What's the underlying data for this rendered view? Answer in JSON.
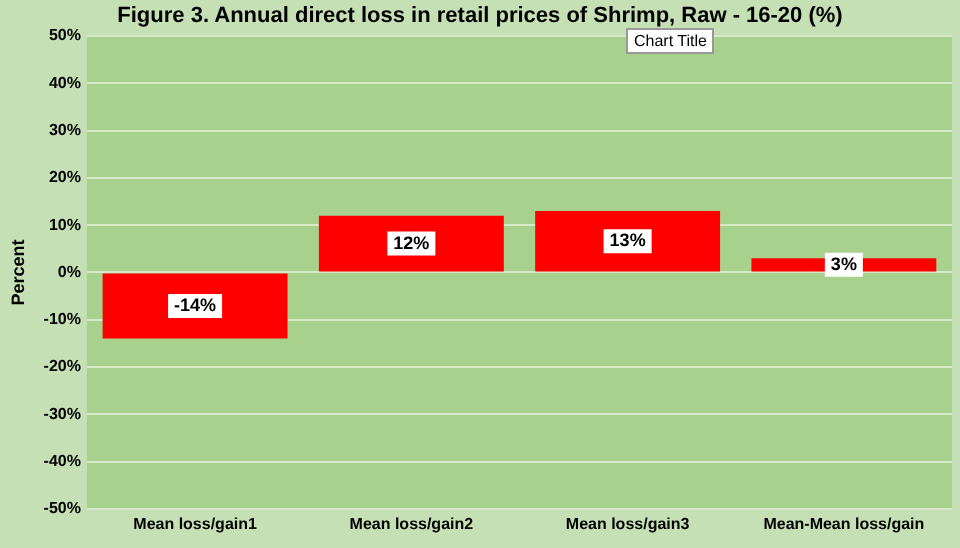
{
  "chart_data": {
    "type": "bar",
    "title": "Figure 3. Annual direct loss in retail prices of Shrimp, Raw - 16-20 (%)",
    "ylabel": "Percent",
    "categories": [
      "Mean loss/gain1",
      "Mean loss/gain2",
      "Mean loss/gain3",
      "Mean-Mean loss/gain"
    ],
    "values": [
      -14,
      12,
      13,
      3
    ],
    "color": "#ff0000",
    "value_labels": [
      "-14%",
      "12%",
      "13%",
      "3%"
    ],
    "ylim": [
      -50,
      50
    ],
    "yticks": [
      {
        "value": -50,
        "label": "-50%"
      },
      {
        "value": -40,
        "label": "-40%"
      },
      {
        "value": -30,
        "label": "-30%"
      },
      {
        "value": -20,
        "label": "-20%"
      },
      {
        "value": -10,
        "label": "-10%"
      },
      {
        "value": 0,
        "label": "0%"
      },
      {
        "value": 10,
        "label": "10%"
      },
      {
        "value": 20,
        "label": "20%"
      },
      {
        "value": 30,
        "label": "30%"
      },
      {
        "value": 40,
        "label": "40%"
      },
      {
        "value": 50,
        "label": "50%"
      }
    ],
    "grid": "y",
    "annotations": [
      "Chart Title"
    ]
  }
}
